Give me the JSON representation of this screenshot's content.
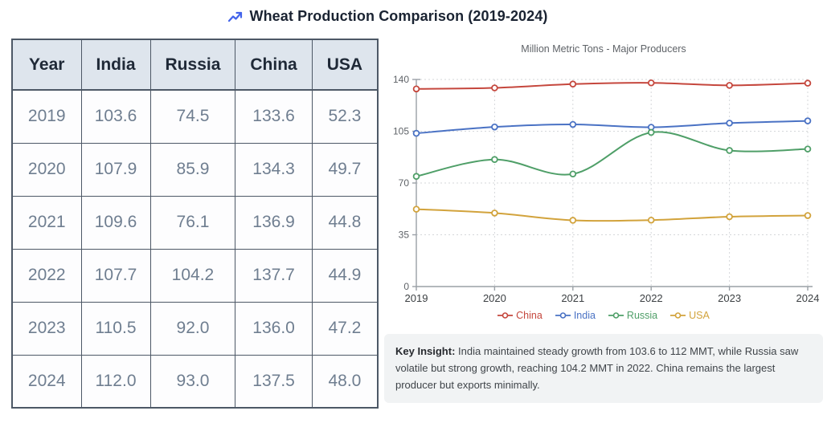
{
  "title": {
    "icon": "trend-up",
    "text": "Wheat Production Comparison (2019-2024)",
    "icon_color": "#4263eb"
  },
  "table": {
    "headers": [
      "Year",
      "India",
      "Russia",
      "China",
      "USA"
    ],
    "rows": [
      [
        "2019",
        "103.6",
        "74.5",
        "133.6",
        "52.3"
      ],
      [
        "2020",
        "107.9",
        "85.9",
        "134.3",
        "49.7"
      ],
      [
        "2021",
        "109.6",
        "76.1",
        "136.9",
        "44.8"
      ],
      [
        "2022",
        "107.7",
        "104.2",
        "137.7",
        "44.9"
      ],
      [
        "2023",
        "110.5",
        "92.0",
        "136.0",
        "47.2"
      ],
      [
        "2024",
        "112.0",
        "93.0",
        "137.5",
        "48.0"
      ]
    ]
  },
  "chart_data": {
    "type": "line",
    "title": "Million Metric Tons - Major Producers",
    "x": [
      2019,
      2020,
      2021,
      2022,
      2023,
      2024
    ],
    "series": [
      {
        "name": "China",
        "color": "#c5473d",
        "values": [
          133.6,
          134.3,
          136.9,
          137.7,
          136.0,
          137.5
        ]
      },
      {
        "name": "India",
        "color": "#4a72c4",
        "values": [
          103.6,
          107.9,
          109.6,
          107.7,
          110.5,
          112.0
        ]
      },
      {
        "name": "Russia",
        "color": "#4f9f68",
        "values": [
          74.5,
          85.9,
          76.1,
          104.2,
          92.0,
          93.0
        ]
      },
      {
        "name": "USA",
        "color": "#d2a33c",
        "values": [
          52.3,
          49.7,
          44.8,
          44.9,
          47.2,
          48.0
        ]
      }
    ],
    "ylim": [
      0,
      140
    ],
    "yticks": [
      0,
      35,
      70,
      105,
      140
    ],
    "grid": true,
    "legend_position": "bottom",
    "axis_color": "#9aa0a6",
    "grid_color": "#d5d7da",
    "ytick_color": "#5f6368",
    "xtick_color": "#3c4043"
  },
  "insight": {
    "label": "Key Insight:",
    "text": " India maintained steady growth from 103.6 to 112 MMT, while Russia saw volatile but strong growth, reaching 104.2 MMT in 2022. China remains the largest producer but exports minimally."
  }
}
